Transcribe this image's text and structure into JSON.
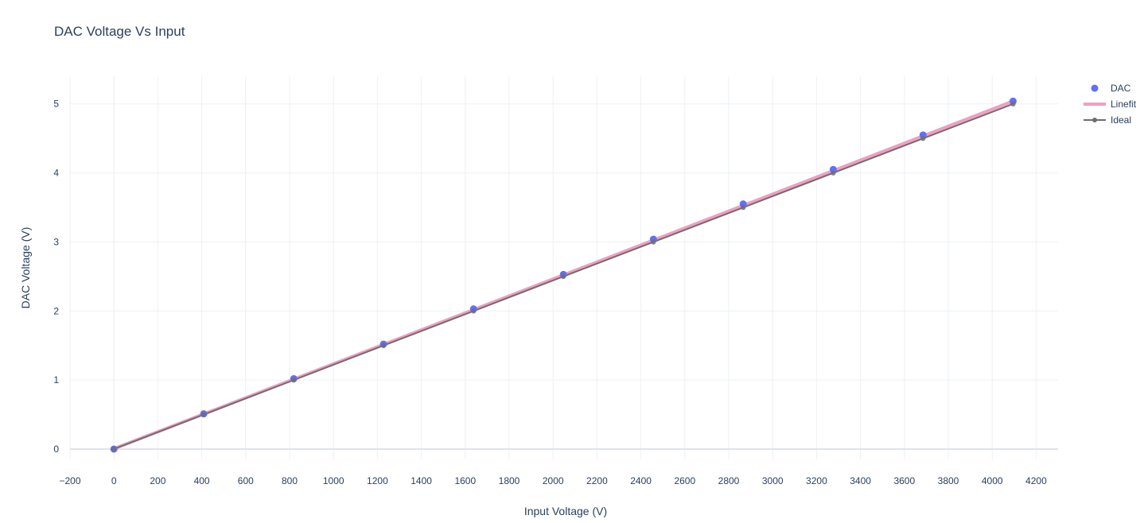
{
  "chart_data": {
    "type": "scatter",
    "title": "DAC Voltage Vs Input",
    "xlabel": "Input Voltage (V)",
    "ylabel": "DAC Voltage (V)",
    "xlim": [
      -200,
      4300
    ],
    "ylim": [
      -0.15,
      5.4
    ],
    "x_ticks": [
      -200,
      0,
      200,
      400,
      600,
      800,
      1000,
      1200,
      1400,
      1600,
      1800,
      2000,
      2200,
      2400,
      2600,
      2800,
      3000,
      3200,
      3400,
      3600,
      3800,
      4000,
      4200
    ],
    "y_ticks": [
      0,
      1,
      2,
      3,
      4,
      5
    ],
    "grid": true,
    "legend_position": "top-right",
    "series": [
      {
        "name": "DAC",
        "mode": "markers",
        "color": "#636efa",
        "x": [
          0,
          409,
          819,
          1228,
          1638,
          2047,
          2457,
          2866,
          3276,
          3685,
          4095
        ],
        "y": [
          0.0,
          0.51,
          1.02,
          1.52,
          2.03,
          2.53,
          3.04,
          3.55,
          4.05,
          4.55,
          5.04
        ]
      },
      {
        "name": "Linefit",
        "mode": "lines",
        "color": "#f19ec2",
        "x": [
          0,
          4095
        ],
        "y": [
          0.005,
          5.04
        ]
      },
      {
        "name": "Ideal",
        "mode": "lines+markers",
        "color": "#6e6e6e",
        "x": [
          0,
          409,
          819,
          1228,
          1638,
          2047,
          2457,
          2866,
          3276,
          3685,
          4095
        ],
        "y": [
          0.0,
          0.5,
          1.0,
          1.5,
          2.0,
          2.5,
          3.0,
          3.5,
          4.0,
          4.5,
          5.0
        ]
      }
    ]
  }
}
